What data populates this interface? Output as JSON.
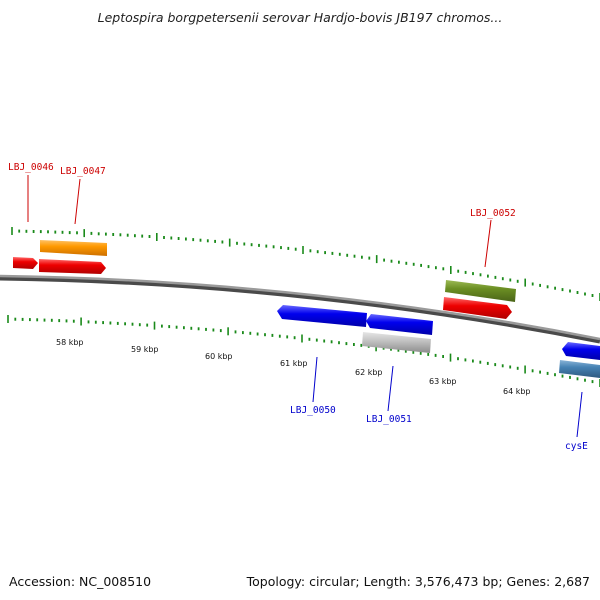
{
  "title": "Leptospira borgpetersenii serovar Hardjo-bovis JB197 chromos...",
  "footer": {
    "accession": "Accession: NC_008510",
    "summary": "Topology: circular; Length: 3,576,473 bp; Genes: 2,687"
  },
  "colors": {
    "backbone": "#7a7a7a",
    "tick": "#1a8a1a",
    "forward_label": "#cc0000",
    "reverse_label": "#0000cc"
  },
  "scale_ticks": [
    "58 kbp",
    "59 kbp",
    "60 kbp",
    "61 kbp",
    "62 kbp",
    "63 kbp",
    "64 kbp"
  ],
  "genes": {
    "forward": [
      {
        "id": "LBJ_0046",
        "label": "LBJ_0046",
        "color": "#ee0000"
      },
      {
        "id": "LBJ_0047",
        "label": "LBJ_0047",
        "color": "#ee0000"
      },
      {
        "id": "orange-feature",
        "label": "",
        "color": "#ff9900"
      },
      {
        "id": "LBJ_0052",
        "label": "LBJ_0052",
        "color": "#ee0000"
      },
      {
        "id": "olive-feature",
        "label": "",
        "color": "#6b8e23"
      }
    ],
    "reverse": [
      {
        "id": "LBJ_0050",
        "label": "LBJ_0050",
        "color": "#0000ee"
      },
      {
        "id": "LBJ_0051",
        "label": "LBJ_0051",
        "color": "#0000ee"
      },
      {
        "id": "grey-feature",
        "label": "",
        "color": "#bbbbbb"
      },
      {
        "id": "cysE",
        "label": "cysE",
        "color": "#0000ee"
      },
      {
        "id": "steelblue-feature",
        "label": "",
        "color": "#4682b4"
      }
    ]
  }
}
